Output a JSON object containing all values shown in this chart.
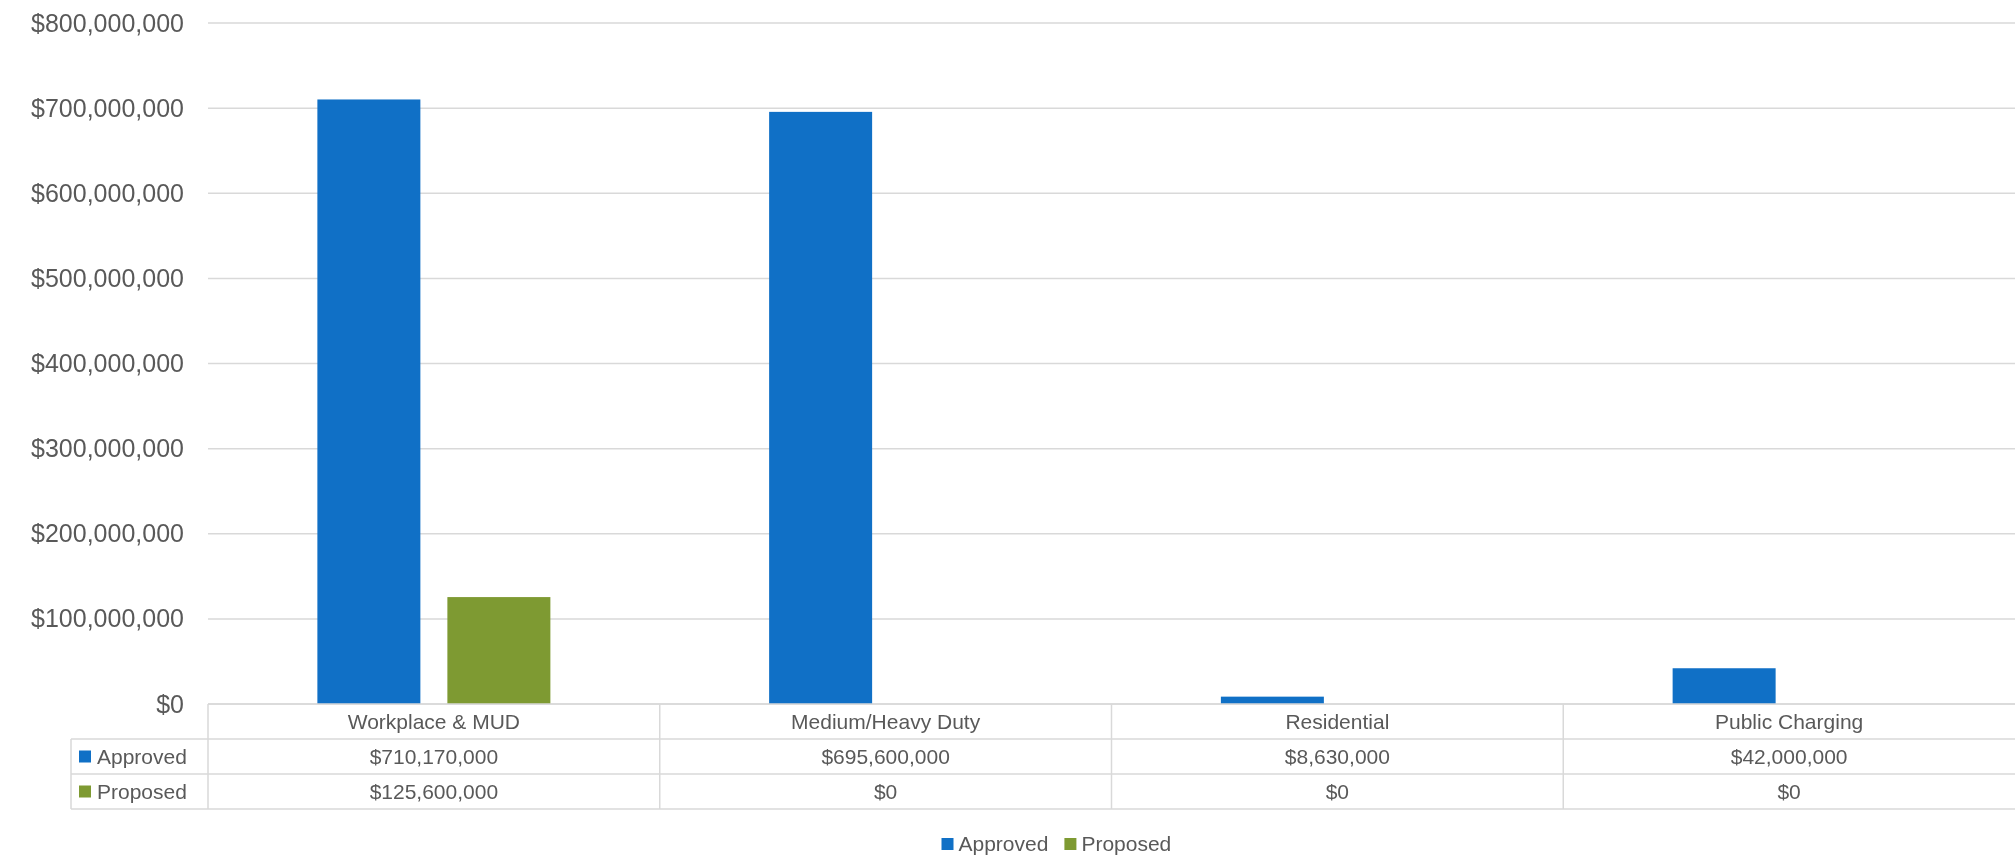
{
  "chart_data": {
    "type": "bar",
    "categories": [
      "Workplace & MUD",
      "Medium/Heavy Duty",
      "Residential",
      "Public Charging"
    ],
    "series": [
      {
        "name": "Approved",
        "color": "#1070c6",
        "values": [
          710170000,
          695600000,
          8630000,
          42000000
        ],
        "value_labels": [
          "$710,170,000",
          "$695,600,000",
          "$8,630,000",
          "$42,000,000"
        ]
      },
      {
        "name": "Proposed",
        "color": "#7e9a32",
        "values": [
          125600000,
          0,
          0,
          0
        ],
        "value_labels": [
          "$125,600,000",
          "$0",
          "$0",
          "$0"
        ]
      }
    ],
    "ylim": [
      0,
      800000000
    ],
    "yticks": [
      {
        "value": 0,
        "label": "$0"
      },
      {
        "value": 100000000,
        "label": "$100,000,000"
      },
      {
        "value": 200000000,
        "label": "$200,000,000"
      },
      {
        "value": 300000000,
        "label": "$300,000,000"
      },
      {
        "value": 400000000,
        "label": "$400,000,000"
      },
      {
        "value": 500000000,
        "label": "$500,000,000"
      },
      {
        "value": 600000000,
        "label": "$600,000,000"
      },
      {
        "value": 700000000,
        "label": "$700,000,000"
      },
      {
        "value": 800000000,
        "label": "$800,000,000"
      }
    ],
    "grid": "y",
    "legend": "bottom"
  }
}
